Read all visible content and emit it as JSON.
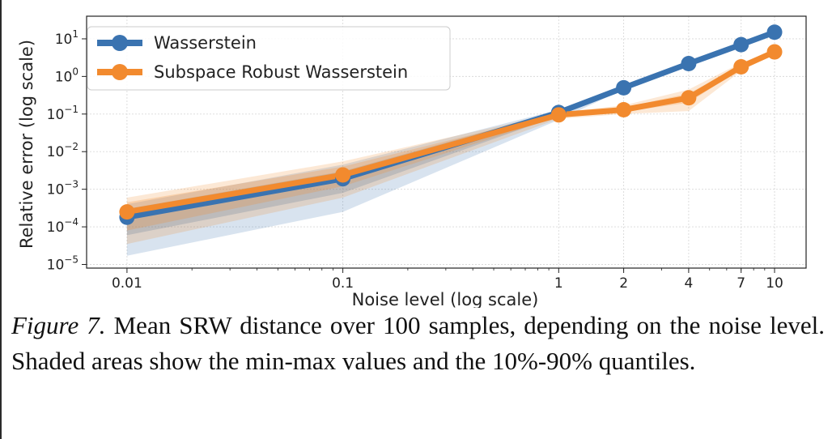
{
  "chart_data": {
    "type": "line",
    "xlabel": "Noise level (log scale)",
    "ylabel": "Relative error (log scale)",
    "xscale": "log",
    "yscale": "log",
    "xlim": [
      0.0065,
      14
    ],
    "ylim": [
      8e-06,
      40
    ],
    "x_ticks": [
      {
        "value": 0.01,
        "label": "0.01"
      },
      {
        "value": 0.1,
        "label": "0.1"
      },
      {
        "value": 1,
        "label": "1"
      },
      {
        "value": 2,
        "label": "2"
      },
      {
        "value": 4,
        "label": "4"
      },
      {
        "value": 7,
        "label": "7"
      },
      {
        "value": 10,
        "label": "10"
      }
    ],
    "y_ticks": [
      {
        "value": 1e-05,
        "base": "10",
        "exp": "−5"
      },
      {
        "value": 0.0001,
        "base": "10",
        "exp": "−4"
      },
      {
        "value": 0.001,
        "base": "10",
        "exp": "−3"
      },
      {
        "value": 0.01,
        "base": "10",
        "exp": "−2"
      },
      {
        "value": 0.1,
        "base": "10",
        "exp": "−1"
      },
      {
        "value": 1,
        "base": "10",
        "exp": "0"
      },
      {
        "value": 10,
        "base": "10",
        "exp": "1"
      }
    ],
    "grid": true,
    "legend_position": "top-left",
    "x": [
      0.01,
      0.1,
      1,
      2,
      4,
      7,
      10
    ],
    "series": [
      {
        "name": "Wasserstein",
        "color": "#3a73b0",
        "values": [
          0.00018,
          0.0019,
          0.11,
          0.5,
          2.2,
          7,
          15
        ],
        "band_minmax_low": [
          1.7e-05,
          0.00025,
          0.07,
          0.45,
          2.0,
          6.5,
          14
        ],
        "band_minmax_high": [
          0.0004,
          0.0045,
          0.13,
          0.55,
          2.4,
          7.5,
          16
        ],
        "band_q_low": [
          6e-05,
          0.0008,
          0.09,
          0.48,
          2.1,
          6.8,
          14.5
        ],
        "band_q_high": [
          0.0003,
          0.003,
          0.12,
          0.52,
          2.3,
          7.2,
          15.5
        ]
      },
      {
        "name": "Subspace Robust Wasserstein",
        "color": "#f28a2e",
        "values": [
          0.00025,
          0.0024,
          0.095,
          0.13,
          0.27,
          1.8,
          4.5
        ],
        "band_minmax_low": [
          3.5e-05,
          0.0006,
          0.075,
          0.1,
          0.12,
          1.4,
          4.0
        ],
        "band_minmax_high": [
          0.0006,
          0.0055,
          0.11,
          0.17,
          0.45,
          2.3,
          5.0
        ],
        "band_q_low": [
          8e-05,
          0.0012,
          0.085,
          0.115,
          0.2,
          1.6,
          4.2
        ],
        "band_q_high": [
          0.00045,
          0.004,
          0.105,
          0.15,
          0.35,
          2.0,
          4.8
        ]
      }
    ]
  },
  "caption": {
    "label": "Figure 7.",
    "text": " Mean SRW distance over 100 samples, depending on the noise level.  Shaded areas show the min-max values and the 10%-90% quantiles."
  }
}
